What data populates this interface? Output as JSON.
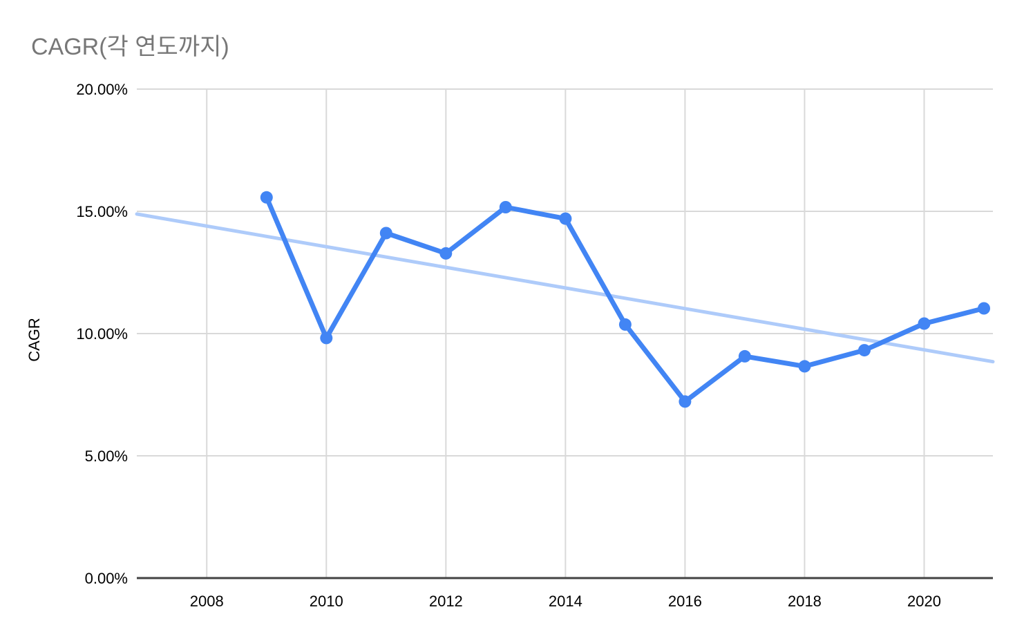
{
  "chart": {
    "title": "CAGR(각 연도까지)",
    "ylabel": "CAGR",
    "colors": {
      "series": "#4285f4",
      "trendline": "#aecbfa",
      "gridline": "#d9d9d9",
      "axis_line": "#424242",
      "title_text": "#777777",
      "tick_text": "#000000",
      "background": "#ffffff"
    }
  },
  "chart_data": {
    "type": "line",
    "title": "CAGR(각 연도까지)",
    "xlabel": "",
    "ylabel": "CAGR",
    "x": [
      2009,
      2010,
      2011,
      2012,
      2013,
      2014,
      2015,
      2016,
      2017,
      2018,
      2019,
      2020,
      2021
    ],
    "series": [
      {
        "name": "CAGR",
        "values": [
          15.57,
          9.82,
          14.11,
          13.28,
          15.17,
          14.7,
          10.37,
          7.22,
          9.07,
          8.66,
          9.32,
          10.41,
          11.03
        ]
      }
    ],
    "trendline": {
      "x_start": 2006.83,
      "y_start": 14.89,
      "x_end": 2021.15,
      "y_end": 8.85
    },
    "x_ticks": [
      {
        "value": 2008,
        "label": "2008"
      },
      {
        "value": 2010,
        "label": "2010"
      },
      {
        "value": 2012,
        "label": "2012"
      },
      {
        "value": 2014,
        "label": "2014"
      },
      {
        "value": 2016,
        "label": "2016"
      },
      {
        "value": 2018,
        "label": "2018"
      },
      {
        "value": 2020,
        "label": "2020"
      }
    ],
    "y_ticks": [
      {
        "value": 0,
        "label": "0.00%"
      },
      {
        "value": 5,
        "label": "5.00%"
      },
      {
        "value": 10,
        "label": "10.00%"
      },
      {
        "value": 15,
        "label": "15.00%"
      },
      {
        "value": 20,
        "label": "20.00%"
      }
    ],
    "xlim": [
      2006.83,
      2021.15
    ],
    "ylim": [
      0,
      20
    ],
    "grid": true,
    "legend": "none"
  }
}
